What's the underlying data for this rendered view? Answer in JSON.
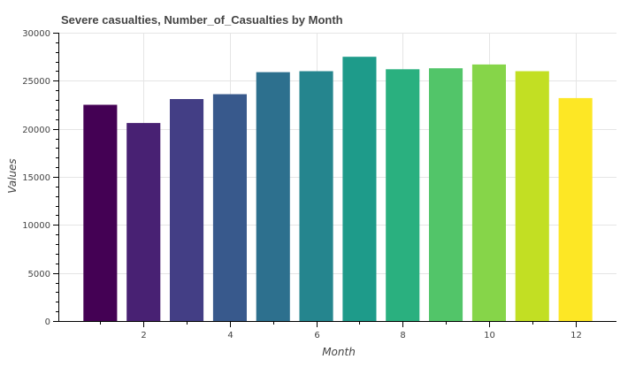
{
  "chart_data": {
    "type": "bar",
    "title": "Severe casualties, Number_of_Casualties by Month",
    "xlabel": "Month",
    "ylabel": "Values",
    "x": [
      1,
      2,
      3,
      4,
      5,
      6,
      7,
      8,
      9,
      10,
      11,
      12
    ],
    "values": [
      22500,
      20600,
      23100,
      23600,
      25900,
      26000,
      27500,
      26200,
      26300,
      26700,
      26000,
      23200
    ],
    "colors": [
      "#440154",
      "#482173",
      "#433e85",
      "#38598c",
      "#2d708e",
      "#25858e",
      "#1e9b8a",
      "#2ab07f",
      "#52c569",
      "#86d549",
      "#c2df23",
      "#fde725"
    ],
    "xlim": [
      0.05,
      12.95
    ],
    "ylim": [
      0,
      30000
    ],
    "x_ticks": [
      2,
      4,
      6,
      8,
      10,
      12
    ],
    "y_ticks": [
      0,
      5000,
      10000,
      15000,
      20000,
      25000,
      30000
    ],
    "grid": true,
    "legend": "none"
  }
}
